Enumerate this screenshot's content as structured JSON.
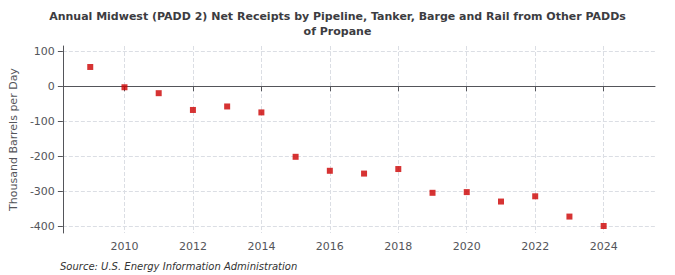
{
  "chart_data": {
    "type": "scatter",
    "title": "Annual Midwest (PADD 2) Net Receipts by Pipeline, Tanker, Barge and Rail from Other PADDs\nof Propane",
    "ylabel": "Thousand Barrels per Day",
    "source": "Source: U.S. Energy Information Administration",
    "x": [
      2009,
      2010,
      2011,
      2012,
      2013,
      2014,
      2015,
      2016,
      2017,
      2018,
      2019,
      2020,
      2021,
      2022,
      2023,
      2024
    ],
    "values": [
      55,
      -3,
      -20,
      -68,
      -58,
      -75,
      -202,
      -242,
      -250,
      -237,
      -305,
      -303,
      -330,
      -315,
      -373,
      -400
    ],
    "color": "#cc0000",
    "marker": "square",
    "xlim": [
      2008.2,
      2025.5
    ],
    "xticks": [
      2010,
      2012,
      2014,
      2016,
      2018,
      2020,
      2022,
      2024
    ],
    "ylim": [
      -420,
      115
    ],
    "yticks": [
      100,
      0,
      -100,
      -200,
      -300,
      -400
    ],
    "grid": true
  }
}
